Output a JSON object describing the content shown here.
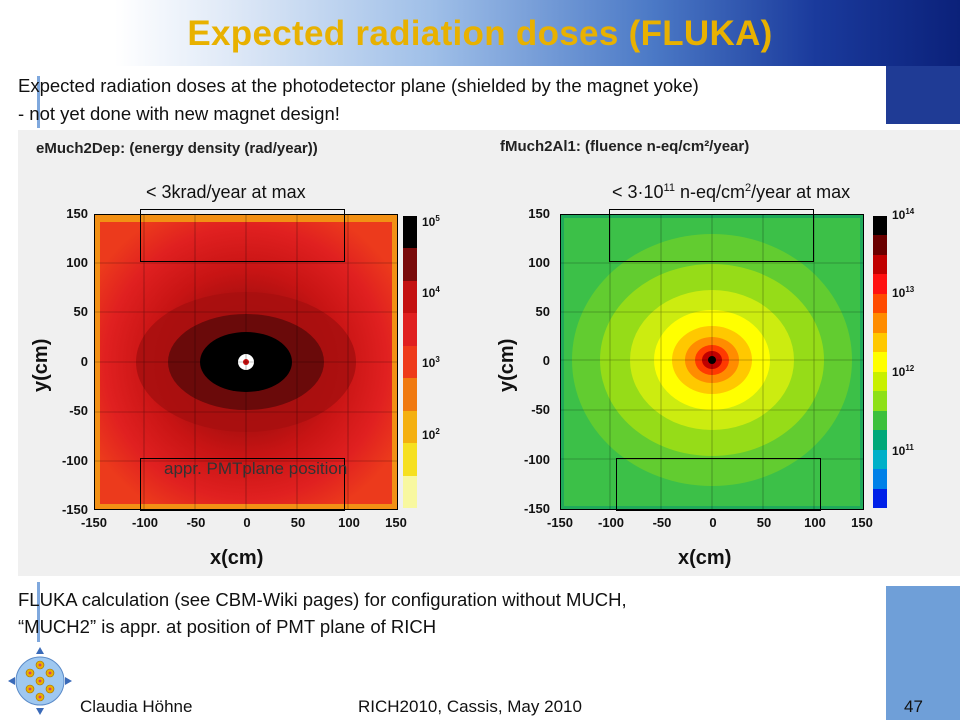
{
  "title": "Expected radiation doses (FLUKA)",
  "intro": {
    "line1": "Expected radiation doses at the photodetector plane (shielded by the magnet yoke)",
    "line2": "- not yet done with new magnet design!"
  },
  "left_plot": {
    "title": "eMuch2Dep: (energy density (rad/year))",
    "annotation": "< 3krad/year at max",
    "pmt_label": "appr. PMTplane position",
    "ylabel": "y(cm)",
    "xlabel": "x(cm)",
    "yticks": [
      "150",
      "100",
      "50",
      "0",
      "-50",
      "-100",
      "-150"
    ],
    "xticks": [
      "-150",
      "-100",
      "-50",
      "0",
      "50",
      "100",
      "150"
    ],
    "colorbar_base": [
      "10",
      "10",
      "10",
      "10"
    ],
    "colorbar_exp": [
      "5",
      "4",
      "3",
      "2"
    ],
    "colors": [
      "#000000",
      "#7a0a0a",
      "#c41010",
      "#e02020",
      "#ee3a1a",
      "#f07a10",
      "#f4b010",
      "#f6e020",
      "#f8f8a0"
    ]
  },
  "right_plot": {
    "title": "fMuch2Al1: (fluence  n-eq/cm²/year)",
    "annotation_pre": "< 3·10",
    "annotation_exp": "11",
    "annotation_mid": " n-eq/cm",
    "annotation_exp2": "2",
    "annotation_post": "/year at max",
    "ylabel": "y(cm)",
    "xlabel": "x(cm)",
    "yticks": [
      "150",
      "100",
      "50",
      "0",
      "-50",
      "-100",
      "-150"
    ],
    "xticks": [
      "-150",
      "-100",
      "-50",
      "0",
      "50",
      "100",
      "150"
    ],
    "colorbar_base": [
      "10",
      "10",
      "10",
      "10"
    ],
    "colorbar_exp": [
      "14",
      "13",
      "12",
      "11"
    ],
    "colors": [
      "#000000",
      "#6a0000",
      "#c00000",
      "#ff1010",
      "#ff4a00",
      "#ff8c00",
      "#ffc800",
      "#ffff00",
      "#c8f000",
      "#8ee018",
      "#3cc03c",
      "#00a878",
      "#00b0c8",
      "#0080e8",
      "#0020e8"
    ]
  },
  "bottom": {
    "line1": "FLUKA calculation (see CBM-Wiki pages) for configuration without MUCH,",
    "line2": "“MUCH2” is appr. at position of PMT plane of RICH"
  },
  "footer": {
    "author": "Claudia Höhne",
    "event": "RICH2010, Cassis, May 2010",
    "page": "47"
  }
}
